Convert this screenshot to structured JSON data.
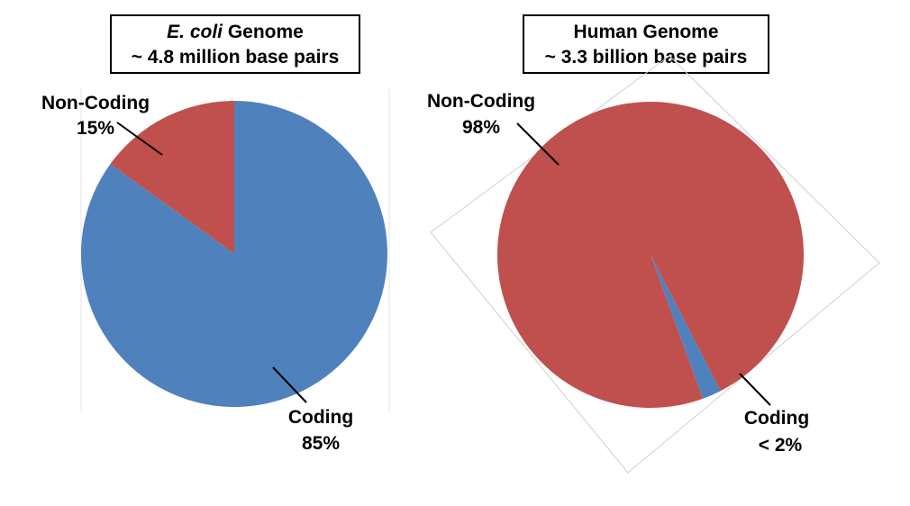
{
  "chart_data": [
    {
      "type": "pie",
      "title_italic": "E. coli",
      "title_rest": " Genome",
      "subtitle": "~ 4.8 million base pairs",
      "slices": [
        {
          "label": "Non-Coding",
          "value_text": "15%",
          "value": 15,
          "color": "#C0504D"
        },
        {
          "label": "Coding",
          "value_text": "85%",
          "value": 85,
          "color": "#4F81BD"
        }
      ]
    },
    {
      "type": "pie",
      "title": "Human Genome",
      "subtitle": "~ 3.3 billion base pairs",
      "slices": [
        {
          "label": "Non-Coding",
          "value_text": "98%",
          "value": 98,
          "color": "#C0504D"
        },
        {
          "label": "Coding",
          "value_text": "< 2%",
          "value": 2,
          "color": "#4F81BD"
        }
      ]
    }
  ]
}
